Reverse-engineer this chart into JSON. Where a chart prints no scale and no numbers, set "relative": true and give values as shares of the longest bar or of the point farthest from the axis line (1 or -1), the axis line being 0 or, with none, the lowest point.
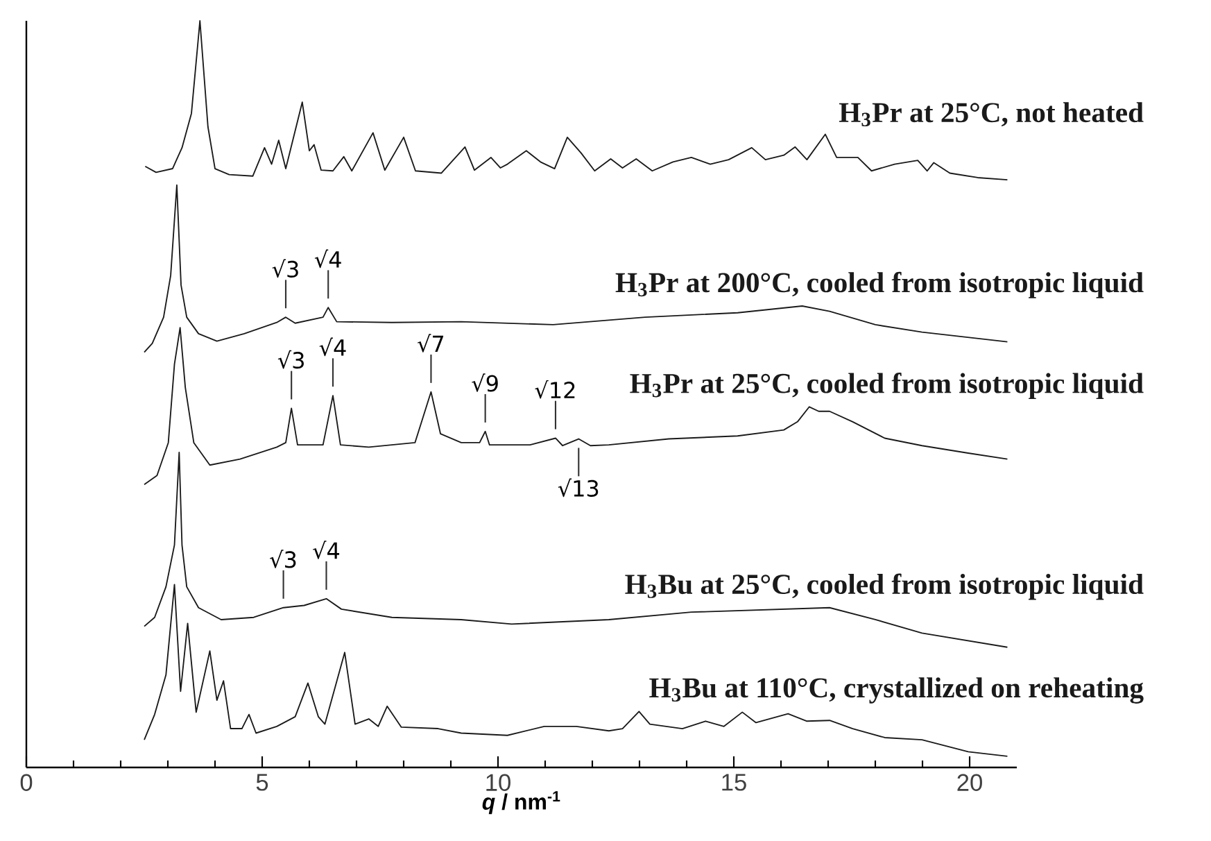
{
  "chart_data": {
    "type": "line",
    "relative": true,
    "xlabel": "*q* / nm$^{-1}$",
    "xlim": [
      0,
      21
    ],
    "xticks": [
      0,
      5,
      10,
      15,
      20
    ],
    "line_style": "solid",
    "series": [
      {
        "name": "H$_{3}$Pr at 25°C, not heated",
        "color": "#1a1a1a",
        "x": [
          2.52,
          2.75,
          3.1,
          3.3,
          3.5,
          3.68,
          3.85,
          4.0,
          4.3,
          4.8,
          5.05,
          5.2,
          5.35,
          5.5,
          5.85,
          6.0,
          6.1,
          6.25,
          6.5,
          6.73,
          6.9,
          7.35,
          7.6,
          8.0,
          8.25,
          8.8,
          9.3,
          9.5,
          9.85,
          10.05,
          10.2,
          10.6,
          10.9,
          11.2,
          11.47,
          11.76,
          12.05,
          12.39,
          12.64,
          12.93,
          13.27,
          13.71,
          14.1,
          14.5,
          14.89,
          15.38,
          15.67,
          16.06,
          16.3,
          16.55,
          16.94,
          17.18,
          17.63,
          17.92,
          18.41,
          18.9,
          19.1,
          19.24,
          19.58,
          20.17,
          20.8
        ],
        "values": [
          0.805,
          0.797,
          0.802,
          0.83,
          0.876,
          1.0,
          0.858,
          0.802,
          0.794,
          0.792,
          0.83,
          0.808,
          0.84,
          0.802,
          0.891,
          0.826,
          0.834,
          0.8,
          0.799,
          0.818,
          0.799,
          0.85,
          0.8,
          0.844,
          0.799,
          0.796,
          0.831,
          0.8,
          0.817,
          0.803,
          0.808,
          0.826,
          0.811,
          0.802,
          0.844,
          0.823,
          0.799,
          0.815,
          0.803,
          0.815,
          0.799,
          0.811,
          0.817,
          0.808,
          0.814,
          0.83,
          0.814,
          0.82,
          0.831,
          0.814,
          0.848,
          0.817,
          0.817,
          0.799,
          0.808,
          0.813,
          0.799,
          0.81,
          0.796,
          0.79,
          0.787
        ]
      },
      {
        "name": "H$_{3}$Pr at 200°C, cooled from isotropic liquid",
        "color": "#1a1a1a",
        "x": [
          2.5,
          2.67,
          2.91,
          3.06,
          3.19,
          3.28,
          3.4,
          3.65,
          4.04,
          4.62,
          5.31,
          5.5,
          5.7,
          6.29,
          6.4,
          6.58,
          7.75,
          9.22,
          11.17,
          13.12,
          15.08,
          16.45,
          17.03,
          18.0,
          18.99,
          20.8
        ],
        "values": [
          0.556,
          0.568,
          0.603,
          0.659,
          0.78,
          0.646,
          0.603,
          0.581,
          0.571,
          0.581,
          0.596,
          0.603,
          0.595,
          0.603,
          0.616,
          0.597,
          0.596,
          0.597,
          0.593,
          0.603,
          0.609,
          0.618,
          0.611,
          0.593,
          0.583,
          0.57
        ]
      },
      {
        "name": "H$_{3}$Pr at 25°C, cooled from isotropic liquid",
        "color": "#1a1a1a",
        "x": [
          2.5,
          2.77,
          3.01,
          3.14,
          3.26,
          3.37,
          3.55,
          3.89,
          4.53,
          5.31,
          5.5,
          5.62,
          5.75,
          6.29,
          6.5,
          6.66,
          7.26,
          8.24,
          8.58,
          8.78,
          9.22,
          9.61,
          9.73,
          9.82,
          10.68,
          11.22,
          11.37,
          11.71,
          11.96,
          12.35,
          13.62,
          15.08,
          16.06,
          16.35,
          16.6,
          16.8,
          17.03,
          17.52,
          18.2,
          18.99,
          19.97,
          20.8
        ],
        "values": [
          0.379,
          0.391,
          0.435,
          0.54,
          0.589,
          0.509,
          0.435,
          0.405,
          0.413,
          0.429,
          0.435,
          0.481,
          0.432,
          0.432,
          0.498,
          0.432,
          0.429,
          0.435,
          0.503,
          0.447,
          0.435,
          0.435,
          0.45,
          0.432,
          0.432,
          0.441,
          0.431,
          0.44,
          0.431,
          0.432,
          0.44,
          0.444,
          0.452,
          0.463,
          0.483,
          0.477,
          0.477,
          0.463,
          0.441,
          0.431,
          0.421,
          0.413
        ]
      },
      {
        "name": "H$_{3}$Bu at 25°C, cooled from isotropic liquid",
        "color": "#1a1a1a",
        "x": [
          2.5,
          2.72,
          2.96,
          3.14,
          3.24,
          3.3,
          3.4,
          3.65,
          4.13,
          4.82,
          5.45,
          5.89,
          6.36,
          6.68,
          7.75,
          9.22,
          10.29,
          12.35,
          14.1,
          17.03,
          18.0,
          18.99,
          20.8
        ],
        "values": [
          0.189,
          0.201,
          0.242,
          0.298,
          0.422,
          0.298,
          0.242,
          0.214,
          0.198,
          0.201,
          0.214,
          0.217,
          0.226,
          0.212,
          0.201,
          0.198,
          0.192,
          0.198,
          0.208,
          0.214,
          0.198,
          0.18,
          0.161
        ]
      },
      {
        "name": "H$_{3}$Bu at 110°C, crystallized on reheating",
        "color": "#1a1a1a",
        "x": [
          2.5,
          2.72,
          2.96,
          3.14,
          3.27,
          3.42,
          3.6,
          3.89,
          4.04,
          4.18,
          4.33,
          4.57,
          4.72,
          4.87,
          5.31,
          5.7,
          5.97,
          6.19,
          6.33,
          6.75,
          6.97,
          7.26,
          7.46,
          7.65,
          7.95,
          8.73,
          9.22,
          10.2,
          10.98,
          11.66,
          12.35,
          12.64,
          12.99,
          13.22,
          13.91,
          14.4,
          14.79,
          15.18,
          15.47,
          16.15,
          16.55,
          17.03,
          17.52,
          18.2,
          18.99,
          19.97,
          20.8
        ],
        "values": [
          0.037,
          0.071,
          0.124,
          0.245,
          0.102,
          0.193,
          0.074,
          0.156,
          0.09,
          0.116,
          0.052,
          0.052,
          0.071,
          0.046,
          0.055,
          0.068,
          0.113,
          0.068,
          0.058,
          0.154,
          0.058,
          0.065,
          0.055,
          0.082,
          0.054,
          0.052,
          0.046,
          0.043,
          0.055,
          0.055,
          0.049,
          0.052,
          0.075,
          0.058,
          0.052,
          0.062,
          0.055,
          0.074,
          0.06,
          0.072,
          0.062,
          0.063,
          0.052,
          0.04,
          0.037,
          0.021,
          0.015
        ]
      }
    ],
    "annotations": [
      {
        "text": "√3",
        "x": 5.5,
        "y": 0.603
      },
      {
        "text": "√4",
        "x": 6.4,
        "y": 0.616
      },
      {
        "text": "√3",
        "x": 5.62,
        "y": 0.481
      },
      {
        "text": "√4",
        "x": 6.5,
        "y": 0.498
      },
      {
        "text": "√7",
        "x": 8.58,
        "y": 0.503
      },
      {
        "text": "√9",
        "x": 9.73,
        "y": 0.45
      },
      {
        "text": "√12",
        "x": 11.22,
        "y": 0.441
      },
      {
        "text": "√13",
        "x": 11.71,
        "y": 0.44
      },
      {
        "text": "√3",
        "x": 5.45,
        "y": 0.214
      },
      {
        "text": "√4",
        "x": 6.36,
        "y": 0.226
      }
    ]
  }
}
